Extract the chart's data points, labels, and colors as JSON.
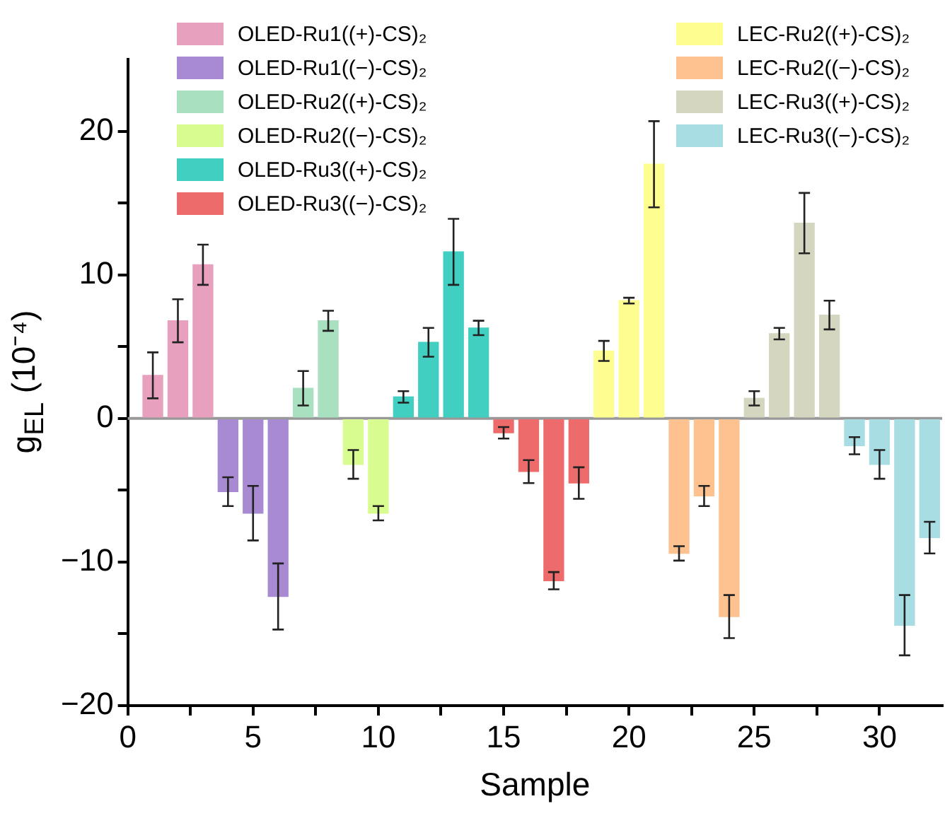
{
  "chart_data": {
    "type": "bar",
    "xlabel": "Sample",
    "ylabel": "g$_{EL}$ (10⁻⁴)",
    "xlim": [
      0,
      32.5
    ],
    "ylim": [
      -20,
      25
    ],
    "xticks": [
      0,
      {
        "value": 2.5,
        "label": null
      },
      5,
      {
        "value": 7.5,
        "label": null
      },
      10,
      {
        "value": 12.5,
        "label": null
      },
      15,
      {
        "value": 17.5,
        "label": null
      },
      20,
      {
        "value": 22.5,
        "label": null
      },
      25,
      {
        "value": 27.5,
        "label": null
      },
      30
    ],
    "yticks": [
      -20,
      {
        "value": -15,
        "label": null
      },
      -10,
      {
        "value": -5,
        "label": null
      },
      0,
      {
        "value": 5,
        "label": null
      },
      10,
      {
        "value": 15,
        "label": null
      },
      20
    ],
    "grid": false,
    "legend": "top",
    "ref_lines": [
      {
        "axis": "y",
        "value": 0,
        "color": "#999999"
      }
    ],
    "series": [
      {
        "name": "OLED-Ru1((+)-CS)₂",
        "color": "#e8a0bf",
        "x": [
          1,
          2,
          3
        ],
        "values": [
          3.0,
          6.8,
          10.7
        ],
        "errors": [
          1.6,
          1.5,
          1.4
        ]
      },
      {
        "name": "OLED-Ru1((−)-CS)₂",
        "color": "#a88ad2",
        "x": [
          4,
          5,
          6
        ],
        "values": [
          -5.1,
          -6.6,
          -12.4
        ],
        "errors": [
          1.0,
          1.9,
          2.3
        ]
      },
      {
        "name": "OLED-Ru2((+)-CS)₂",
        "color": "#a8e0c0",
        "x": [
          7,
          8
        ],
        "values": [
          2.1,
          6.8
        ],
        "errors": [
          1.2,
          0.7
        ]
      },
      {
        "name": "OLED-Ru2((−)-CS)₂",
        "color": "#d8fc90",
        "x": [
          9,
          10
        ],
        "values": [
          -3.2,
          -6.6
        ],
        "errors": [
          1.0,
          0.5
        ]
      },
      {
        "name": "OLED-Ru3((+)-CS)₂",
        "color": "#40cfc0",
        "x": [
          11,
          12,
          13,
          14
        ],
        "values": [
          1.5,
          5.3,
          11.6,
          6.3
        ],
        "errors": [
          0.4,
          1.0,
          2.3,
          0.5
        ]
      },
      {
        "name": "OLED-Ru3((−)-CS)₂",
        "color": "#ee6b6b",
        "x": [
          15,
          16,
          17,
          18
        ],
        "values": [
          -1.0,
          -3.7,
          -11.3,
          -4.5
        ],
        "errors": [
          0.4,
          0.8,
          0.6,
          1.1
        ]
      },
      {
        "name": "LEC-Ru2((+)-CS)₂",
        "color": "#fefe90",
        "x": [
          19,
          20,
          21
        ],
        "values": [
          4.7,
          8.2,
          17.7
        ],
        "errors": [
          0.7,
          0.2,
          3.0
        ]
      },
      {
        "name": "LEC-Ru2((−)-CS)₂",
        "color": "#fdc290",
        "x": [
          22,
          23,
          24
        ],
        "values": [
          -9.4,
          -5.4,
          -13.8
        ],
        "errors": [
          0.5,
          0.7,
          1.5
        ]
      },
      {
        "name": "LEC-Ru3((+)-CS)₂",
        "color": "#d4d6c0",
        "x": [
          25,
          26,
          27,
          28
        ],
        "values": [
          1.4,
          5.9,
          13.6,
          7.2
        ],
        "errors": [
          0.5,
          0.4,
          2.1,
          1.0
        ]
      },
      {
        "name": "LEC-Ru3((−)-CS)₂",
        "color": "#a8dde4",
        "x": [
          29,
          30,
          31,
          32
        ],
        "values": [
          -1.9,
          -3.2,
          -14.4,
          -8.3
        ],
        "errors": [
          0.6,
          1.0,
          2.1,
          1.1
        ]
      }
    ]
  }
}
